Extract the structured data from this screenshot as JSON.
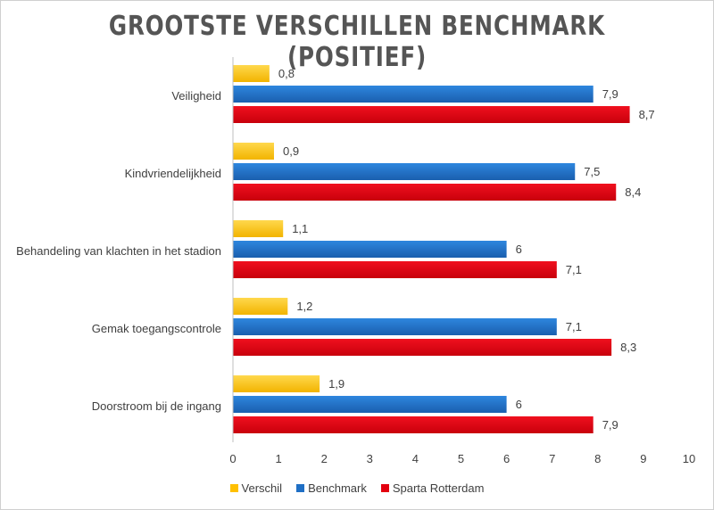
{
  "chart_data": {
    "type": "bar",
    "orientation": "horizontal",
    "title": "GROOTSTE VERSCHILLEN BENCHMARK (POSITIEF)",
    "categories": [
      "Veiligheid",
      "Kindvriendelijkheid",
      "Behandeling van klachten in het stadion",
      "Gemak toegangscontrole",
      "Doorstroom bij de ingang"
    ],
    "series": [
      {
        "name": "Verschil",
        "color": "#FFC000",
        "values": [
          0.8,
          0.9,
          1.1,
          1.2,
          1.9
        ],
        "labels": [
          "0,8",
          "0,9",
          "1,1",
          "1,2",
          "1,9"
        ]
      },
      {
        "name": "Benchmark",
        "color": "#1F6FC5",
        "values": [
          7.9,
          7.5,
          6,
          7.1,
          6
        ],
        "labels": [
          "7,9",
          "7,5",
          "6",
          "7,1",
          "6"
        ]
      },
      {
        "name": "Sparta Rotterdam",
        "color": "#E3000F",
        "values": [
          8.7,
          8.4,
          7.1,
          8.3,
          7.9
        ],
        "labels": [
          "8,7",
          "8,4",
          "7,1",
          "8,3",
          "7,9"
        ]
      }
    ],
    "xlim": [
      0,
      10
    ],
    "xticks": [
      "0",
      "1",
      "2",
      "3",
      "4",
      "5",
      "6",
      "7",
      "8",
      "9",
      "10"
    ],
    "grid": false,
    "legend_position": "bottom"
  }
}
